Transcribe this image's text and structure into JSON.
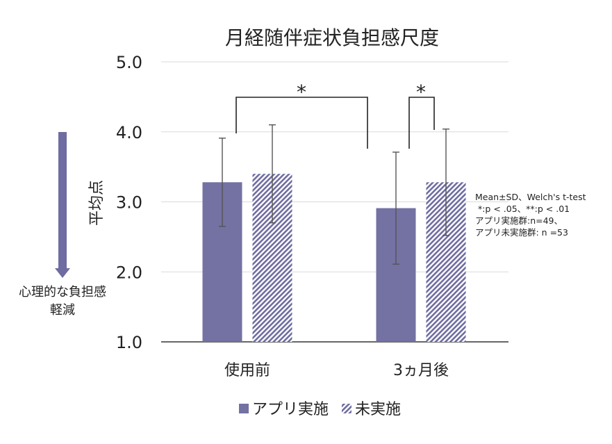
{
  "chart_data": {
    "type": "bar",
    "title": "月経随伴症状負担感尺度",
    "ylabel": "平均点",
    "xlabel": "",
    "ylim": [
      1.0,
      5.0
    ],
    "yticks": [
      "1.0",
      "2.0",
      "3.0",
      "4.0",
      "5.0"
    ],
    "yticks_values": [
      1.0,
      2.0,
      3.0,
      4.0,
      5.0
    ],
    "grid": true,
    "categories": [
      "使用前",
      "3ヵ月後"
    ],
    "series": [
      {
        "name": "アプリ実施",
        "values": [
          3.28,
          2.91
        ],
        "sd": [
          0.63,
          0.8
        ],
        "color": "#7471a3",
        "pattern": "solid"
      },
      {
        "name": "未実施",
        "values": [
          3.4,
          3.28
        ],
        "sd": [
          0.7,
          0.76
        ],
        "color": "#6e6ca0",
        "pattern": "hatched"
      }
    ],
    "significance": [
      {
        "label": "*",
        "between": "アプリ実施 使用前 vs 3ヵ月後"
      },
      {
        "label": "*",
        "between": "3ヵ月後 アプリ実施 vs 未実施"
      }
    ],
    "arrow": {
      "label_line1": "心理的な負担感",
      "label_line2": "軽減",
      "direction": "down",
      "color": "#6e6ca0"
    },
    "note": {
      "line1": "Mean±SD、Welch's t-test",
      "line2": " *:p < .05、**:p < .01",
      "line3": "アプリ実施群:n=49、",
      "line4": "アプリ未実施群: n =53"
    },
    "legend_position": "bottom"
  }
}
